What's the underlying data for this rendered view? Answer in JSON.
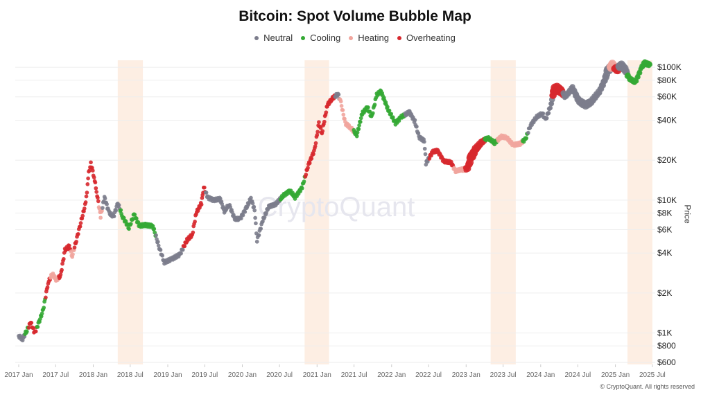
{
  "chart_data": {
    "type": "scatter",
    "title": "Bitcoin: Spot Volume Bubble Map",
    "ylabel": "Price",
    "yscale": "log",
    "ylim": [
      580,
      120000
    ],
    "xlim": [
      "2016-12-15",
      "2025-07-15"
    ],
    "grid": true,
    "legend_position": "top-center",
    "watermark": "CryptoQuant",
    "copyright": "© CryptoQuant. All rights reserved",
    "x_ticks": [
      {
        "label": "2017 Jan",
        "date": "2017-01-01"
      },
      {
        "label": "2017 Jul",
        "date": "2017-07-01"
      },
      {
        "label": "2018 Jan",
        "date": "2018-01-01"
      },
      {
        "label": "2018 Jul",
        "date": "2018-07-01"
      },
      {
        "label": "2019 Jan",
        "date": "2019-01-01"
      },
      {
        "label": "2019 Jul",
        "date": "2019-07-01"
      },
      {
        "label": "2020 Jan",
        "date": "2020-01-01"
      },
      {
        "label": "2020 Jul",
        "date": "2020-07-01"
      },
      {
        "label": "2021 Jan",
        "date": "2021-01-01"
      },
      {
        "label": "2021 Jul",
        "date": "2021-07-01"
      },
      {
        "label": "2022 Jan",
        "date": "2022-01-01"
      },
      {
        "label": "2022 Jul",
        "date": "2022-07-01"
      },
      {
        "label": "2023 Jan",
        "date": "2023-01-01"
      },
      {
        "label": "2023 Jul",
        "date": "2023-07-01"
      },
      {
        "label": "2024 Jan",
        "date": "2024-01-01"
      },
      {
        "label": "2024 Jul",
        "date": "2024-07-01"
      },
      {
        "label": "2025 Jan",
        "date": "2025-01-01"
      },
      {
        "label": "2025 Jul",
        "date": "2025-07-01"
      }
    ],
    "y_ticks": [
      {
        "label": "$600",
        "value": 600
      },
      {
        "label": "$800",
        "value": 800
      },
      {
        "label": "$1K",
        "value": 1000
      },
      {
        "label": "$2K",
        "value": 2000
      },
      {
        "label": "$4K",
        "value": 4000
      },
      {
        "label": "$6K",
        "value": 6000
      },
      {
        "label": "$8K",
        "value": 8000
      },
      {
        "label": "$10K",
        "value": 10000
      },
      {
        "label": "$20K",
        "value": 20000
      },
      {
        "label": "$40K",
        "value": 40000
      },
      {
        "label": "$60K",
        "value": 60000
      },
      {
        "label": "$80K",
        "value": 80000
      },
      {
        "label": "$100K",
        "value": 100000
      }
    ],
    "highlight_bands": [
      {
        "start": "2018-05-01",
        "end": "2018-09-01"
      },
      {
        "start": "2020-11-01",
        "end": "2021-03-01"
      },
      {
        "start": "2023-05-01",
        "end": "2023-09-01"
      },
      {
        "start": "2025-03-01",
        "end": "2025-07-01"
      }
    ],
    "band_color": "#fdeee3",
    "series": [
      {
        "name": "Neutral",
        "color": "#7c7d8c"
      },
      {
        "name": "Cooling",
        "color": "#34a934"
      },
      {
        "name": "Heating",
        "color": "#f1a59d"
      },
      {
        "name": "Overheating",
        "color": "#d7282e"
      }
    ],
    "path": [
      [
        "2017-01-01",
        950,
        "Neutral",
        3
      ],
      [
        "2017-01-20",
        900,
        "Neutral",
        3
      ],
      [
        "2017-02-10",
        1050,
        "Cooling",
        3
      ],
      [
        "2017-03-01",
        1200,
        "Overheating",
        3
      ],
      [
        "2017-03-20",
        1000,
        "Overheating",
        3
      ],
      [
        "2017-04-10",
        1200,
        "Cooling",
        3
      ],
      [
        "2017-05-01",
        1500,
        "Cooling",
        3
      ],
      [
        "2017-05-25",
        2400,
        "Overheating",
        3
      ],
      [
        "2017-06-15",
        2800,
        "Heating",
        3
      ],
      [
        "2017-07-05",
        2500,
        "Heating",
        3
      ],
      [
        "2017-07-25",
        2700,
        "Overheating",
        3
      ],
      [
        "2017-08-15",
        4200,
        "Overheating",
        3
      ],
      [
        "2017-09-05",
        4500,
        "Overheating",
        3
      ],
      [
        "2017-09-20",
        3800,
        "Heating",
        3
      ],
      [
        "2017-10-10",
        5000,
        "Overheating",
        3
      ],
      [
        "2017-11-01",
        6800,
        "Overheating",
        3
      ],
      [
        "2017-11-25",
        9500,
        "Overheating",
        3
      ],
      [
        "2017-12-10",
        16000,
        "Overheating",
        3
      ],
      [
        "2017-12-20",
        19000,
        "Overheating",
        3
      ],
      [
        "2018-01-05",
        15000,
        "Overheating",
        3
      ],
      [
        "2018-01-20",
        11000,
        "Overheating",
        3
      ],
      [
        "2018-02-06",
        7500,
        "Heating",
        3
      ],
      [
        "2018-02-25",
        10500,
        "Neutral",
        3
      ],
      [
        "2018-03-20",
        8000,
        "Neutral",
        3
      ],
      [
        "2018-04-10",
        7500,
        "Neutral",
        3
      ],
      [
        "2018-05-01",
        9500,
        "Neutral",
        3
      ],
      [
        "2018-05-25",
        7500,
        "Cooling",
        3
      ],
      [
        "2018-06-25",
        6200,
        "Cooling",
        3
      ],
      [
        "2018-07-20",
        7800,
        "Cooling",
        3
      ],
      [
        "2018-08-15",
        6400,
        "Cooling",
        3
      ],
      [
        "2018-09-15",
        6500,
        "Cooling",
        3
      ],
      [
        "2018-10-20",
        6400,
        "Cooling",
        3
      ],
      [
        "2018-11-20",
        4400,
        "Neutral",
        3
      ],
      [
        "2018-12-15",
        3400,
        "Neutral",
        3
      ],
      [
        "2019-01-20",
        3600,
        "Neutral",
        3
      ],
      [
        "2019-03-01",
        3900,
        "Neutral",
        3
      ],
      [
        "2019-04-05",
        5000,
        "Overheating",
        3
      ],
      [
        "2019-05-01",
        5500,
        "Overheating",
        3
      ],
      [
        "2019-05-20",
        8000,
        "Overheating",
        3
      ],
      [
        "2019-06-15",
        9500,
        "Overheating",
        3
      ],
      [
        "2019-06-26",
        12500,
        "Overheating",
        3
      ],
      [
        "2019-07-15",
        10500,
        "Neutral",
        3
      ],
      [
        "2019-08-15",
        10000,
        "Neutral",
        3
      ],
      [
        "2019-09-15",
        10200,
        "Neutral",
        3
      ],
      [
        "2019-10-05",
        8200,
        "Neutral",
        3
      ],
      [
        "2019-10-28",
        9300,
        "Neutral",
        3
      ],
      [
        "2019-11-25",
        7200,
        "Neutral",
        3
      ],
      [
        "2019-12-20",
        7200,
        "Neutral",
        3
      ],
      [
        "2020-01-20",
        8700,
        "Neutral",
        3
      ],
      [
        "2020-02-12",
        10300,
        "Neutral",
        3
      ],
      [
        "2020-03-01",
        8500,
        "Neutral",
        3
      ],
      [
        "2020-03-13",
        5000,
        "Neutral",
        3
      ],
      [
        "2020-04-10",
        7000,
        "Neutral",
        3
      ],
      [
        "2020-05-10",
        9000,
        "Neutral",
        3
      ],
      [
        "2020-06-15",
        9400,
        "Neutral",
        3
      ],
      [
        "2020-07-25",
        11000,
        "Cooling",
        3
      ],
      [
        "2020-08-20",
        11800,
        "Cooling",
        3
      ],
      [
        "2020-09-15",
        10500,
        "Cooling",
        3
      ],
      [
        "2020-10-20",
        12500,
        "Cooling",
        3
      ],
      [
        "2020-11-20",
        18500,
        "Overheating",
        3
      ],
      [
        "2020-12-20",
        24000,
        "Overheating",
        3
      ],
      [
        "2021-01-10",
        38000,
        "Overheating",
        3
      ],
      [
        "2021-01-25",
        32000,
        "Overheating",
        3
      ],
      [
        "2021-02-20",
        52000,
        "Overheating",
        3
      ],
      [
        "2021-03-15",
        58000,
        "Overheating",
        3
      ],
      [
        "2021-04-14",
        63000,
        "Neutral",
        3
      ],
      [
        "2021-04-28",
        54000,
        "Heating",
        3
      ],
      [
        "2021-05-19",
        38000,
        "Heating",
        3
      ],
      [
        "2021-06-15",
        35000,
        "Heating",
        3
      ],
      [
        "2021-07-15",
        31000,
        "Cooling",
        3
      ],
      [
        "2021-08-10",
        45000,
        "Cooling",
        3
      ],
      [
        "2021-09-05",
        50000,
        "Cooling",
        3
      ],
      [
        "2021-09-25",
        42000,
        "Cooling",
        3
      ],
      [
        "2021-10-20",
        62000,
        "Cooling",
        3
      ],
      [
        "2021-11-10",
        66000,
        "Cooling",
        3
      ],
      [
        "2021-12-15",
        48000,
        "Cooling",
        3
      ],
      [
        "2022-01-20",
        38000,
        "Cooling",
        3
      ],
      [
        "2022-02-15",
        42000,
        "Cooling",
        3
      ],
      [
        "2022-03-30",
        46000,
        "Neutral",
        3
      ],
      [
        "2022-04-25",
        39000,
        "Neutral",
        3
      ],
      [
        "2022-05-15",
        30000,
        "Neutral",
        3
      ],
      [
        "2022-06-10",
        28000,
        "Neutral",
        3
      ],
      [
        "2022-06-18",
        19000,
        "Neutral",
        3
      ],
      [
        "2022-07-20",
        23000,
        "Overheating",
        3
      ],
      [
        "2022-08-15",
        23500,
        "Overheating",
        3
      ],
      [
        "2022-09-15",
        19500,
        "Overheating",
        3
      ],
      [
        "2022-10-20",
        19200,
        "Overheating",
        3
      ],
      [
        "2022-11-10",
        16500,
        "Heating",
        3
      ],
      [
        "2022-12-15",
        17000,
        "Heating",
        3
      ],
      [
        "2023-01-10",
        17500,
        "Overheating",
        6
      ],
      [
        "2023-01-25",
        21000,
        "Overheating",
        9
      ],
      [
        "2023-02-15",
        24000,
        "Overheating",
        7
      ],
      [
        "2023-03-20",
        27500,
        "Overheating",
        5
      ],
      [
        "2023-04-15",
        29500,
        "Cooling",
        3
      ],
      [
        "2023-05-20",
        27000,
        "Cooling",
        3
      ],
      [
        "2023-06-20",
        30000,
        "Heating",
        3
      ],
      [
        "2023-07-20",
        29500,
        "Heating",
        3
      ],
      [
        "2023-08-20",
        26000,
        "Heating",
        3
      ],
      [
        "2023-09-20",
        26500,
        "Heating",
        3
      ],
      [
        "2023-10-20",
        29000,
        "Cooling",
        3
      ],
      [
        "2023-11-10",
        36000,
        "Neutral",
        3
      ],
      [
        "2023-12-10",
        42000,
        "Neutral",
        3
      ],
      [
        "2024-01-10",
        45000,
        "Neutral",
        3
      ],
      [
        "2024-01-25",
        40000,
        "Neutral",
        3
      ],
      [
        "2024-02-20",
        52000,
        "Neutral",
        4
      ],
      [
        "2024-03-05",
        66000,
        "Overheating",
        8
      ],
      [
        "2024-03-15",
        70000,
        "Overheating",
        10
      ],
      [
        "2024-04-10",
        66000,
        "Overheating",
        8
      ],
      [
        "2024-05-01",
        60000,
        "Neutral",
        4
      ],
      [
        "2024-06-05",
        70000,
        "Neutral",
        5
      ],
      [
        "2024-07-05",
        56000,
        "Neutral",
        6
      ],
      [
        "2024-08-05",
        52000,
        "Neutral",
        7
      ],
      [
        "2024-09-05",
        55000,
        "Neutral",
        6
      ],
      [
        "2024-10-15",
        66000,
        "Neutral",
        5
      ],
      [
        "2024-11-10",
        80000,
        "Neutral",
        6
      ],
      [
        "2024-11-25",
        95000,
        "Neutral",
        8
      ],
      [
        "2024-12-17",
        104000,
        "Heating",
        8
      ],
      [
        "2025-01-10",
        95000,
        "Overheating",
        7
      ],
      [
        "2025-01-25",
        105000,
        "Neutral",
        8
      ],
      [
        "2025-02-20",
        95000,
        "Neutral",
        7
      ],
      [
        "2025-03-10",
        82000,
        "Cooling",
        4
      ],
      [
        "2025-04-08",
        77000,
        "Cooling",
        4
      ],
      [
        "2025-05-10",
        100000,
        "Cooling",
        4
      ],
      [
        "2025-05-25",
        108000,
        "Cooling",
        5
      ],
      [
        "2025-06-20",
        105000,
        "Cooling",
        4
      ]
    ]
  }
}
